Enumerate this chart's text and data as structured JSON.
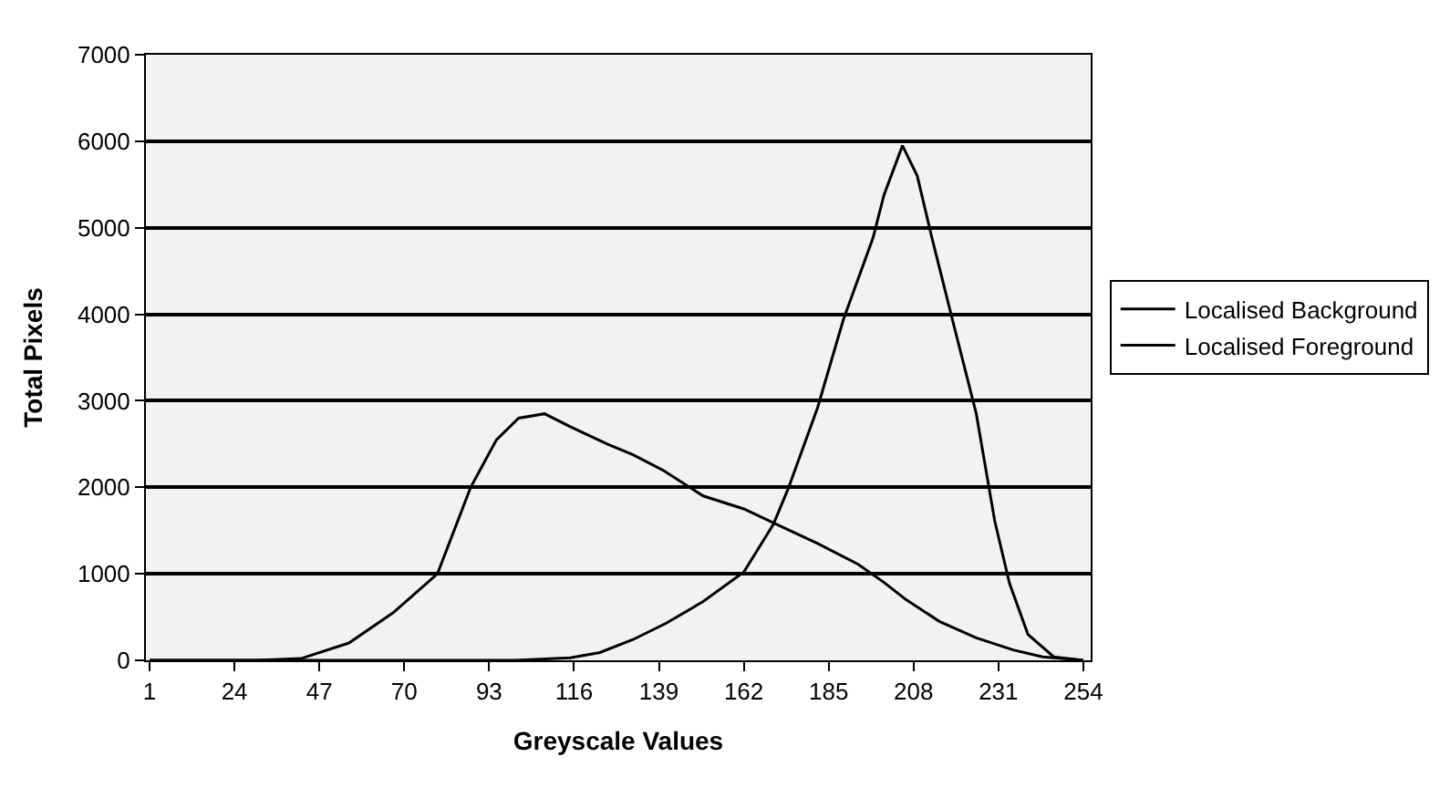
{
  "chart_data": {
    "type": "line",
    "xlabel": "Greyscale Values",
    "ylabel": "Total Pixels",
    "xlim": [
      0,
      256
    ],
    "xticks": [
      1,
      24,
      47,
      70,
      93,
      116,
      139,
      162,
      185,
      208,
      231,
      254
    ],
    "ylim": [
      0,
      7000
    ],
    "yticks": [
      0,
      1000,
      2000,
      3000,
      4000,
      5000,
      6000,
      7000
    ],
    "grid": "y",
    "legend": "right",
    "marker": "none",
    "line_style": "solid",
    "series": [
      {
        "name": "Localised Background",
        "color": "#000000",
        "x": [
          1,
          60,
          100,
          115,
          123,
          132,
          141,
          151,
          162,
          170,
          174,
          182,
          189,
          197,
          200,
          205,
          209,
          213,
          219,
          225,
          230,
          234,
          239,
          246,
          254
        ],
        "values": [
          0,
          0,
          0,
          30,
          90,
          240,
          430,
          680,
          1020,
          1570,
          1980,
          2920,
          3940,
          4880,
          5380,
          5950,
          5600,
          4880,
          3860,
          2850,
          1610,
          890,
          300,
          40,
          0
        ]
      },
      {
        "name": "Localised Foreground",
        "color": "#000000",
        "x": [
          1,
          30,
          42,
          55,
          67,
          79,
          88,
          95,
          101,
          108,
          115,
          125,
          132,
          140,
          151,
          162,
          171,
          182,
          193,
          200,
          206,
          215,
          225,
          235,
          243,
          254
        ],
        "values": [
          0,
          0,
          20,
          200,
          550,
          1000,
          2000,
          2550,
          2800,
          2850,
          2700,
          2500,
          2375,
          2200,
          1900,
          1750,
          1570,
          1350,
          1110,
          900,
          700,
          450,
          260,
          120,
          40,
          0
        ]
      }
    ]
  }
}
